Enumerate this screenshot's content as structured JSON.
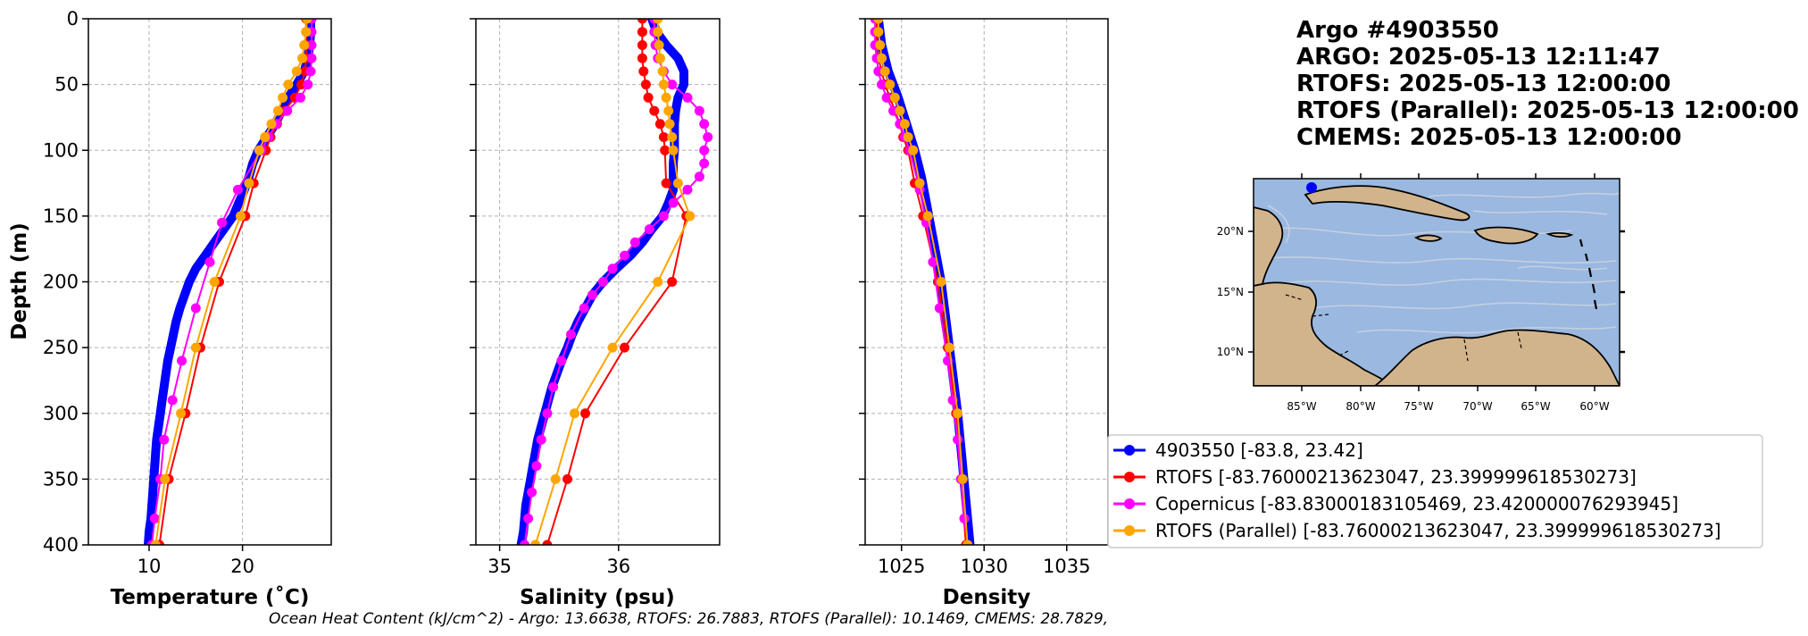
{
  "title": {
    "lines": [
      "Argo #4903550",
      "ARGO:  2025-05-13 12:11:47",
      "RTOFS: 2025-05-13 12:00:00",
      "RTOFS (Parallel): 2025-05-13 12:00:00",
      "CMEMS: 2025-05-13 12:00:00"
    ]
  },
  "footer": {
    "ohc_text": "Ocean Heat Content (kJ/cm^2) - Argo: 13.6638,  RTOFS: 26.7883,  RTOFS (Parallel): 10.1469,  CMEMS: 28.7829,"
  },
  "colors": {
    "argo": "#0000ff",
    "rtofs": "#ff0000",
    "copernicus": "#ff00ff",
    "rtofs_parallel": "#ffa500",
    "ocean": "#9ab8e0",
    "land": "#d2b48c"
  },
  "map": {
    "lon_ticks": [
      "85°W",
      "80°W",
      "75°W",
      "70°W",
      "65°W",
      "60°W"
    ],
    "lat_ticks": [
      "20°N",
      "15°N",
      "10°N"
    ],
    "float_position": {
      "lon": -83.8,
      "lat": 23.42
    }
  },
  "chart_data": [
    {
      "type": "line",
      "name": "temperature",
      "xlabel": "Temperature (˚C)",
      "ylabel": "Depth (m)",
      "xlim": [
        3.5,
        29.5
      ],
      "ylim": [
        400,
        0
      ],
      "xticks": [
        10,
        20
      ],
      "yticks": [
        0,
        50,
        100,
        150,
        200,
        250,
        300,
        350,
        400
      ],
      "grid": true,
      "series": [
        {
          "name": "4903550 [-83.8, 23.42]",
          "depth": [
            0,
            10,
            20,
            30,
            40,
            50,
            60,
            70,
            80,
            90,
            100,
            110,
            120,
            130,
            140,
            150,
            160,
            170,
            180,
            190,
            200,
            210,
            220,
            230,
            240,
            250,
            260,
            270,
            280,
            290,
            300,
            310,
            320,
            330,
            340,
            350,
            360,
            370,
            380,
            390,
            400
          ],
          "values": [
            27.3,
            27.3,
            27.2,
            27.0,
            26.6,
            25.8,
            24.9,
            24.2,
            23.5,
            22.6,
            21.7,
            21.1,
            20.7,
            20.2,
            19.6,
            19.0,
            18.0,
            17.0,
            16.0,
            15.0,
            14.3,
            13.8,
            13.3,
            12.9,
            12.6,
            12.3,
            12.0,
            11.8,
            11.6,
            11.4,
            11.2,
            11.0,
            10.8,
            10.7,
            10.6,
            10.5,
            10.4,
            10.3,
            10.2,
            10.0,
            9.9
          ]
        },
        {
          "name": "RTOFS [-83.76000213623047, 23.399999618530273]",
          "depth": [
            0,
            10,
            20,
            30,
            40,
            50,
            60,
            70,
            80,
            90,
            100,
            125,
            150,
            200,
            250,
            300,
            350,
            400
          ],
          "values": [
            26.8,
            26.8,
            26.8,
            26.8,
            26.7,
            26.3,
            25.6,
            24.5,
            23.7,
            23.0,
            22.5,
            21.2,
            20.3,
            17.5,
            15.5,
            13.9,
            12.1,
            11.1
          ]
        },
        {
          "name": "Copernicus [-83.83000183105469, 23.420000076293945]",
          "depth": [
            0,
            10,
            20,
            30,
            40,
            50,
            60,
            70,
            80,
            90,
            100,
            130,
            155,
            185,
            220,
            260,
            290,
            320,
            350,
            380,
            400
          ],
          "values": [
            27.4,
            27.4,
            27.4,
            27.4,
            27.3,
            27.0,
            26.2,
            24.8,
            23.6,
            22.8,
            22.0,
            19.5,
            17.8,
            16.5,
            15.0,
            13.5,
            12.5,
            11.6,
            11.2,
            10.6,
            10.3
          ]
        },
        {
          "name": "RTOFS (Parallel) [-83.76000213623047, 23.399999618530273]",
          "depth": [
            0,
            10,
            20,
            30,
            40,
            50,
            60,
            70,
            80,
            90,
            100,
            125,
            150,
            200,
            250,
            300,
            350,
            400
          ],
          "values": [
            26.9,
            26.8,
            26.6,
            26.4,
            25.8,
            24.9,
            24.3,
            23.8,
            23.1,
            22.4,
            21.8,
            20.7,
            19.8,
            17.0,
            15.0,
            13.4,
            11.7,
            10.7
          ]
        }
      ]
    },
    {
      "type": "line",
      "name": "salinity",
      "xlabel": "Salinity (psu)",
      "ylabel": "",
      "xlim": [
        34.8,
        36.85
      ],
      "ylim": [
        400,
        0
      ],
      "xticks": [
        35,
        36
      ],
      "yticks": [
        0,
        50,
        100,
        150,
        200,
        250,
        300,
        350,
        400
      ],
      "grid": true,
      "series": [
        {
          "name": "4903550 [-83.8, 23.42]",
          "depth": [
            0,
            10,
            20,
            30,
            40,
            50,
            60,
            70,
            80,
            90,
            100,
            110,
            120,
            130,
            140,
            150,
            160,
            170,
            180,
            190,
            200,
            210,
            220,
            230,
            240,
            250,
            260,
            270,
            280,
            290,
            300,
            310,
            320,
            330,
            340,
            350,
            360,
            370,
            380,
            390,
            400
          ],
          "values": [
            36.28,
            36.32,
            36.4,
            36.5,
            36.55,
            36.55,
            36.5,
            36.48,
            36.47,
            36.47,
            36.47,
            36.46,
            36.46,
            36.46,
            36.42,
            36.37,
            36.28,
            36.2,
            36.1,
            35.98,
            35.87,
            35.78,
            35.72,
            35.66,
            35.61,
            35.57,
            35.52,
            35.48,
            35.44,
            35.41,
            35.38,
            35.35,
            35.32,
            35.3,
            35.28,
            35.26,
            35.24,
            35.22,
            35.21,
            35.2,
            35.18
          ]
        },
        {
          "name": "RTOFS [-83.76000213623047, 23.399999618530273]",
          "depth": [
            0,
            10,
            20,
            30,
            40,
            50,
            60,
            70,
            80,
            90,
            100,
            125,
            150,
            200,
            250,
            300,
            350,
            400
          ],
          "values": [
            36.2,
            36.2,
            36.2,
            36.2,
            36.21,
            36.23,
            36.25,
            36.3,
            36.35,
            36.38,
            36.39,
            36.4,
            36.57,
            36.45,
            36.05,
            35.72,
            35.57,
            35.4
          ]
        },
        {
          "name": "Copernicus [-83.83000183105469, 23.420000076293945]",
          "depth": [
            0,
            10,
            20,
            30,
            40,
            50,
            60,
            70,
            80,
            90,
            100,
            110,
            120,
            130,
            140,
            150,
            160,
            170,
            180,
            190,
            200,
            210,
            220,
            240,
            260,
            280,
            300,
            320,
            340,
            360,
            380,
            400
          ],
          "values": [
            36.3,
            36.3,
            36.31,
            36.33,
            36.38,
            36.45,
            36.58,
            36.68,
            36.72,
            36.75,
            36.72,
            36.72,
            36.68,
            36.58,
            36.46,
            36.38,
            36.26,
            36.14,
            36.05,
            35.95,
            35.87,
            35.78,
            35.71,
            35.6,
            35.52,
            35.45,
            35.4,
            35.35,
            35.31,
            35.27,
            35.24,
            35.21
          ]
        },
        {
          "name": "RTOFS (Parallel) [-83.76000213623047, 23.399999618530273]",
          "depth": [
            0,
            10,
            20,
            30,
            40,
            50,
            60,
            70,
            80,
            90,
            100,
            125,
            150,
            200,
            250,
            300,
            350,
            400
          ],
          "values": [
            36.33,
            36.33,
            36.34,
            36.35,
            36.37,
            36.38,
            36.4,
            36.42,
            36.43,
            36.45,
            36.46,
            36.5,
            36.6,
            36.33,
            35.95,
            35.63,
            35.47,
            35.3
          ]
        }
      ]
    },
    {
      "type": "line",
      "name": "density",
      "xlabel": "Density",
      "ylabel": "",
      "xlim": [
        1022.8,
        1037.5
      ],
      "ylim": [
        400,
        0
      ],
      "xticks": [
        1025,
        1030,
        1035
      ],
      "yticks": [
        0,
        50,
        100,
        150,
        200,
        250,
        300,
        350,
        400
      ],
      "grid": true,
      "series": [
        {
          "name": "4903550 [-83.8, 23.42]",
          "depth": [
            0,
            20,
            40,
            60,
            80,
            100,
            120,
            140,
            160,
            180,
            200,
            220,
            240,
            260,
            280,
            300,
            320,
            340,
            360,
            380,
            400
          ],
          "values": [
            1023.6,
            1023.8,
            1024.2,
            1024.8,
            1025.3,
            1025.8,
            1026.2,
            1026.5,
            1026.8,
            1027.1,
            1027.4,
            1027.6,
            1027.8,
            1028.0,
            1028.2,
            1028.4,
            1028.55,
            1028.7,
            1028.85,
            1029.0,
            1029.15
          ]
        },
        {
          "name": "RTOFS [-83.76000213623047, 23.399999618530273]",
          "depth": [
            0,
            10,
            20,
            30,
            40,
            50,
            60,
            70,
            80,
            90,
            100,
            125,
            150,
            200,
            250,
            300,
            350,
            400
          ],
          "values": [
            1023.5,
            1023.5,
            1023.5,
            1023.6,
            1023.8,
            1024.0,
            1024.3,
            1024.6,
            1024.9,
            1025.1,
            1025.4,
            1025.8,
            1026.3,
            1027.2,
            1027.8,
            1028.3,
            1028.6,
            1028.9
          ]
        },
        {
          "name": "Copernicus [-83.83000183105469, 23.420000076293945]",
          "depth": [
            0,
            10,
            20,
            30,
            40,
            50,
            60,
            70,
            80,
            90,
            100,
            130,
            155,
            185,
            220,
            260,
            290,
            320,
            350,
            380,
            400
          ],
          "values": [
            1023.4,
            1023.4,
            1023.4,
            1023.5,
            1023.6,
            1023.8,
            1024.1,
            1024.5,
            1024.9,
            1025.2,
            1025.5,
            1026.1,
            1026.5,
            1026.9,
            1027.3,
            1027.8,
            1028.1,
            1028.4,
            1028.6,
            1028.8,
            1029.0
          ]
        },
        {
          "name": "RTOFS (Parallel) [-83.76000213623047, 23.399999618530273]",
          "depth": [
            0,
            10,
            20,
            30,
            40,
            50,
            60,
            70,
            80,
            90,
            100,
            125,
            150,
            200,
            250,
            300,
            350,
            400
          ],
          "values": [
            1023.6,
            1023.6,
            1023.7,
            1023.8,
            1024.0,
            1024.3,
            1024.6,
            1024.9,
            1025.2,
            1025.4,
            1025.7,
            1026.1,
            1026.6,
            1027.4,
            1027.9,
            1028.4,
            1028.7,
            1029.0
          ]
        }
      ]
    }
  ]
}
